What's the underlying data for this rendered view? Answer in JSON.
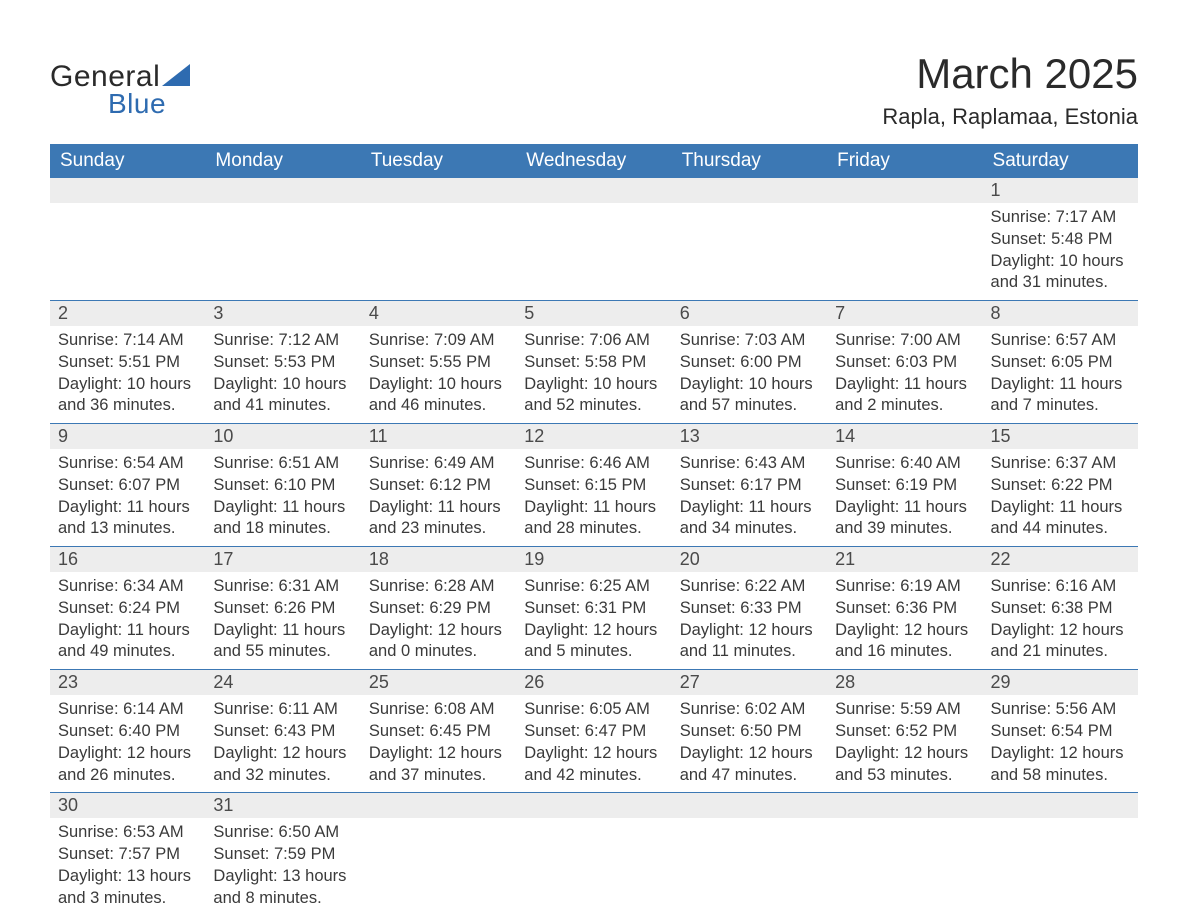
{
  "logo": {
    "text1": "General",
    "text2": "Blue",
    "triangle_color": "#2e6bb0"
  },
  "title": "March 2025",
  "location": "Rapla, Raplamaa, Estonia",
  "colors": {
    "header_bg": "#3c78b4",
    "header_text": "#ffffff",
    "daynum_bg": "#ededed",
    "border": "#3c78b4",
    "text": "#3a3a3a"
  },
  "fonts": {
    "title_size": 42,
    "location_size": 22,
    "header_size": 19,
    "daynum_size": 18,
    "body_size": 16.5
  },
  "weekdays": [
    "Sunday",
    "Monday",
    "Tuesday",
    "Wednesday",
    "Thursday",
    "Friday",
    "Saturday"
  ],
  "weeks": [
    [
      {
        "day": "",
        "sunrise": "",
        "sunset": "",
        "daylight": ""
      },
      {
        "day": "",
        "sunrise": "",
        "sunset": "",
        "daylight": ""
      },
      {
        "day": "",
        "sunrise": "",
        "sunset": "",
        "daylight": ""
      },
      {
        "day": "",
        "sunrise": "",
        "sunset": "",
        "daylight": ""
      },
      {
        "day": "",
        "sunrise": "",
        "sunset": "",
        "daylight": ""
      },
      {
        "day": "",
        "sunrise": "",
        "sunset": "",
        "daylight": ""
      },
      {
        "day": "1",
        "sunrise": "Sunrise: 7:17 AM",
        "sunset": "Sunset: 5:48 PM",
        "daylight": "Daylight: 10 hours and 31 minutes."
      }
    ],
    [
      {
        "day": "2",
        "sunrise": "Sunrise: 7:14 AM",
        "sunset": "Sunset: 5:51 PM",
        "daylight": "Daylight: 10 hours and 36 minutes."
      },
      {
        "day": "3",
        "sunrise": "Sunrise: 7:12 AM",
        "sunset": "Sunset: 5:53 PM",
        "daylight": "Daylight: 10 hours and 41 minutes."
      },
      {
        "day": "4",
        "sunrise": "Sunrise: 7:09 AM",
        "sunset": "Sunset: 5:55 PM",
        "daylight": "Daylight: 10 hours and 46 minutes."
      },
      {
        "day": "5",
        "sunrise": "Sunrise: 7:06 AM",
        "sunset": "Sunset: 5:58 PM",
        "daylight": "Daylight: 10 hours and 52 minutes."
      },
      {
        "day": "6",
        "sunrise": "Sunrise: 7:03 AM",
        "sunset": "Sunset: 6:00 PM",
        "daylight": "Daylight: 10 hours and 57 minutes."
      },
      {
        "day": "7",
        "sunrise": "Sunrise: 7:00 AM",
        "sunset": "Sunset: 6:03 PM",
        "daylight": "Daylight: 11 hours and 2 minutes."
      },
      {
        "day": "8",
        "sunrise": "Sunrise: 6:57 AM",
        "sunset": "Sunset: 6:05 PM",
        "daylight": "Daylight: 11 hours and 7 minutes."
      }
    ],
    [
      {
        "day": "9",
        "sunrise": "Sunrise: 6:54 AM",
        "sunset": "Sunset: 6:07 PM",
        "daylight": "Daylight: 11 hours and 13 minutes."
      },
      {
        "day": "10",
        "sunrise": "Sunrise: 6:51 AM",
        "sunset": "Sunset: 6:10 PM",
        "daylight": "Daylight: 11 hours and 18 minutes."
      },
      {
        "day": "11",
        "sunrise": "Sunrise: 6:49 AM",
        "sunset": "Sunset: 6:12 PM",
        "daylight": "Daylight: 11 hours and 23 minutes."
      },
      {
        "day": "12",
        "sunrise": "Sunrise: 6:46 AM",
        "sunset": "Sunset: 6:15 PM",
        "daylight": "Daylight: 11 hours and 28 minutes."
      },
      {
        "day": "13",
        "sunrise": "Sunrise: 6:43 AM",
        "sunset": "Sunset: 6:17 PM",
        "daylight": "Daylight: 11 hours and 34 minutes."
      },
      {
        "day": "14",
        "sunrise": "Sunrise: 6:40 AM",
        "sunset": "Sunset: 6:19 PM",
        "daylight": "Daylight: 11 hours and 39 minutes."
      },
      {
        "day": "15",
        "sunrise": "Sunrise: 6:37 AM",
        "sunset": "Sunset: 6:22 PM",
        "daylight": "Daylight: 11 hours and 44 minutes."
      }
    ],
    [
      {
        "day": "16",
        "sunrise": "Sunrise: 6:34 AM",
        "sunset": "Sunset: 6:24 PM",
        "daylight": "Daylight: 11 hours and 49 minutes."
      },
      {
        "day": "17",
        "sunrise": "Sunrise: 6:31 AM",
        "sunset": "Sunset: 6:26 PM",
        "daylight": "Daylight: 11 hours and 55 minutes."
      },
      {
        "day": "18",
        "sunrise": "Sunrise: 6:28 AM",
        "sunset": "Sunset: 6:29 PM",
        "daylight": "Daylight: 12 hours and 0 minutes."
      },
      {
        "day": "19",
        "sunrise": "Sunrise: 6:25 AM",
        "sunset": "Sunset: 6:31 PM",
        "daylight": "Daylight: 12 hours and 5 minutes."
      },
      {
        "day": "20",
        "sunrise": "Sunrise: 6:22 AM",
        "sunset": "Sunset: 6:33 PM",
        "daylight": "Daylight: 12 hours and 11 minutes."
      },
      {
        "day": "21",
        "sunrise": "Sunrise: 6:19 AM",
        "sunset": "Sunset: 6:36 PM",
        "daylight": "Daylight: 12 hours and 16 minutes."
      },
      {
        "day": "22",
        "sunrise": "Sunrise: 6:16 AM",
        "sunset": "Sunset: 6:38 PM",
        "daylight": "Daylight: 12 hours and 21 minutes."
      }
    ],
    [
      {
        "day": "23",
        "sunrise": "Sunrise: 6:14 AM",
        "sunset": "Sunset: 6:40 PM",
        "daylight": "Daylight: 12 hours and 26 minutes."
      },
      {
        "day": "24",
        "sunrise": "Sunrise: 6:11 AM",
        "sunset": "Sunset: 6:43 PM",
        "daylight": "Daylight: 12 hours and 32 minutes."
      },
      {
        "day": "25",
        "sunrise": "Sunrise: 6:08 AM",
        "sunset": "Sunset: 6:45 PM",
        "daylight": "Daylight: 12 hours and 37 minutes."
      },
      {
        "day": "26",
        "sunrise": "Sunrise: 6:05 AM",
        "sunset": "Sunset: 6:47 PM",
        "daylight": "Daylight: 12 hours and 42 minutes."
      },
      {
        "day": "27",
        "sunrise": "Sunrise: 6:02 AM",
        "sunset": "Sunset: 6:50 PM",
        "daylight": "Daylight: 12 hours and 47 minutes."
      },
      {
        "day": "28",
        "sunrise": "Sunrise: 5:59 AM",
        "sunset": "Sunset: 6:52 PM",
        "daylight": "Daylight: 12 hours and 53 minutes."
      },
      {
        "day": "29",
        "sunrise": "Sunrise: 5:56 AM",
        "sunset": "Sunset: 6:54 PM",
        "daylight": "Daylight: 12 hours and 58 minutes."
      }
    ],
    [
      {
        "day": "30",
        "sunrise": "Sunrise: 6:53 AM",
        "sunset": "Sunset: 7:57 PM",
        "daylight": "Daylight: 13 hours and 3 minutes."
      },
      {
        "day": "31",
        "sunrise": "Sunrise: 6:50 AM",
        "sunset": "Sunset: 7:59 PM",
        "daylight": "Daylight: 13 hours and 8 minutes."
      },
      {
        "day": "",
        "sunrise": "",
        "sunset": "",
        "daylight": ""
      },
      {
        "day": "",
        "sunrise": "",
        "sunset": "",
        "daylight": ""
      },
      {
        "day": "",
        "sunrise": "",
        "sunset": "",
        "daylight": ""
      },
      {
        "day": "",
        "sunrise": "",
        "sunset": "",
        "daylight": ""
      },
      {
        "day": "",
        "sunrise": "",
        "sunset": "",
        "daylight": ""
      }
    ]
  ]
}
